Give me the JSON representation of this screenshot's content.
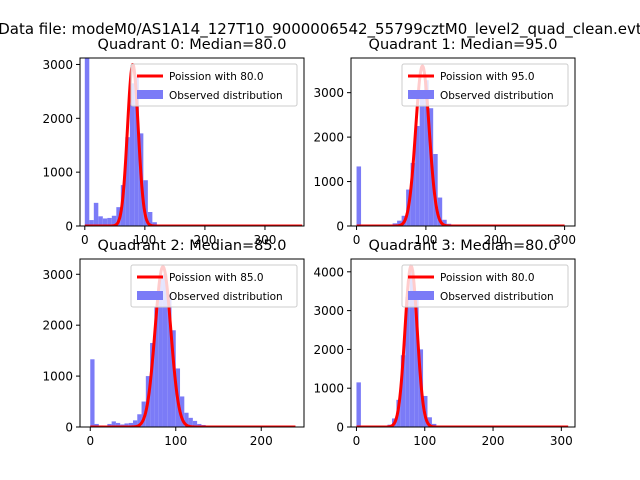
{
  "figure": {
    "suptitle": "Data file: modeM0/AS1A14_127T10_9000006542_55799cztM0_level2_quad_clean.evt"
  },
  "colors": {
    "histogram": "#7b7bf7",
    "poisson": "#ff0000",
    "axes": "#000000"
  },
  "chart_data": [
    {
      "type": "bar",
      "title": "Quadrant 0: Median=80.0",
      "xlim": [
        -8,
        365
      ],
      "ylim": [
        0,
        3120
      ],
      "xticks": [
        0,
        100,
        200,
        300
      ],
      "yticks": [
        0,
        1000,
        2000,
        3000
      ],
      "legend": {
        "location": "upper-right",
        "entries": [
          "Poission with 80.0",
          "Observed distribution"
        ]
      },
      "histogram": {
        "bin_width": 7.5,
        "bins": [
          {
            "x": 0,
            "count": 3120
          },
          {
            "x": 7.5,
            "count": 110
          },
          {
            "x": 15,
            "count": 430
          },
          {
            "x": 22.5,
            "count": 180
          },
          {
            "x": 30,
            "count": 140
          },
          {
            "x": 37.5,
            "count": 150
          },
          {
            "x": 45,
            "count": 190
          },
          {
            "x": 52.5,
            "count": 350
          },
          {
            "x": 60,
            "count": 760
          },
          {
            "x": 67.5,
            "count": 1650
          },
          {
            "x": 75,
            "count": 2650
          },
          {
            "x": 82.5,
            "count": 2780
          },
          {
            "x": 90,
            "count": 1720
          },
          {
            "x": 97.5,
            "count": 850
          },
          {
            "x": 105,
            "count": 260
          },
          {
            "x": 112.5,
            "count": 70
          },
          {
            "x": 120,
            "count": 20
          }
        ]
      },
      "poisson": {
        "mean": 80.0,
        "peak": 3000,
        "x_range": [
          0,
          362
        ]
      }
    },
    {
      "type": "bar",
      "title": "Quadrant 1: Median=95.0",
      "xlim": [
        -8,
        315
      ],
      "ylim": [
        0,
        3780
      ],
      "xticks": [
        0,
        100,
        200,
        300
      ],
      "yticks": [
        0,
        1000,
        2000,
        3000
      ],
      "legend": {
        "location": "upper-right",
        "entries": [
          "Poission with 95.0",
          "Observed distribution"
        ]
      },
      "histogram": {
        "bin_width": 6.5,
        "bins": [
          {
            "x": 0,
            "count": 1340
          },
          {
            "x": 6.5,
            "count": 30
          },
          {
            "x": 26,
            "count": 30
          },
          {
            "x": 52,
            "count": 60
          },
          {
            "x": 58.5,
            "count": 120
          },
          {
            "x": 65,
            "count": 230
          },
          {
            "x": 71.5,
            "count": 820
          },
          {
            "x": 78,
            "count": 1420
          },
          {
            "x": 84.5,
            "count": 2250
          },
          {
            "x": 91,
            "count": 3050
          },
          {
            "x": 97.5,
            "count": 3280
          },
          {
            "x": 104,
            "count": 2650
          },
          {
            "x": 110.5,
            "count": 1620
          },
          {
            "x": 117,
            "count": 640
          },
          {
            "x": 123.5,
            "count": 140
          },
          {
            "x": 130,
            "count": 50
          }
        ]
      },
      "poisson": {
        "mean": 95.0,
        "peak": 3600,
        "x_range": [
          0,
          300
        ]
      }
    },
    {
      "type": "bar",
      "title": "Quadrant 2: Median=85.0",
      "xlim": [
        -12,
        250
      ],
      "ylim": [
        0,
        3300
      ],
      "xticks": [
        0,
        100,
        200
      ],
      "yticks": [
        0,
        1000,
        2000,
        3000
      ],
      "legend": {
        "location": "upper-right",
        "entries": [
          "Poission with 85.0",
          "Observed distribution"
        ]
      },
      "histogram": {
        "bin_width": 5,
        "bins": [
          {
            "x": 0,
            "count": 1330
          },
          {
            "x": 5,
            "count": 60
          },
          {
            "x": 10,
            "count": 30
          },
          {
            "x": 20,
            "count": 60
          },
          {
            "x": 25,
            "count": 110
          },
          {
            "x": 30,
            "count": 80
          },
          {
            "x": 35,
            "count": 50
          },
          {
            "x": 40,
            "count": 70
          },
          {
            "x": 45,
            "count": 80
          },
          {
            "x": 50,
            "count": 130
          },
          {
            "x": 55,
            "count": 250
          },
          {
            "x": 60,
            "count": 500
          },
          {
            "x": 65,
            "count": 1000
          },
          {
            "x": 70,
            "count": 1650
          },
          {
            "x": 75,
            "count": 2350
          },
          {
            "x": 80,
            "count": 2950
          },
          {
            "x": 85,
            "count": 3000
          },
          {
            "x": 90,
            "count": 2600
          },
          {
            "x": 95,
            "count": 1900
          },
          {
            "x": 100,
            "count": 1150
          },
          {
            "x": 105,
            "count": 600
          },
          {
            "x": 110,
            "count": 280
          },
          {
            "x": 115,
            "count": 180
          },
          {
            "x": 120,
            "count": 120
          },
          {
            "x": 125,
            "count": 60
          },
          {
            "x": 130,
            "count": 40
          },
          {
            "x": 135,
            "count": 20
          }
        ]
      },
      "poisson": {
        "mean": 85.0,
        "peak": 3150,
        "x_range": [
          0,
          240
        ]
      }
    },
    {
      "type": "bar",
      "title": "Quadrant 3: Median=80.0",
      "xlim": [
        -8,
        320
      ],
      "ylim": [
        0,
        4330
      ],
      "xticks": [
        0,
        100,
        200,
        300
      ],
      "yticks": [
        0,
        1000,
        2000,
        3000,
        4000
      ],
      "legend": {
        "location": "upper-right",
        "entries": [
          "Poission with 80.0",
          "Observed distribution"
        ]
      },
      "histogram": {
        "bin_width": 6.5,
        "bins": [
          {
            "x": 0,
            "count": 1150
          },
          {
            "x": 6.5,
            "count": 30
          },
          {
            "x": 45.5,
            "count": 60
          },
          {
            "x": 52,
            "count": 220
          },
          {
            "x": 58.5,
            "count": 700
          },
          {
            "x": 65,
            "count": 1850
          },
          {
            "x": 71.5,
            "count": 3350
          },
          {
            "x": 78,
            "count": 4050
          },
          {
            "x": 84.5,
            "count": 3400
          },
          {
            "x": 91,
            "count": 2000
          },
          {
            "x": 97.5,
            "count": 800
          },
          {
            "x": 104,
            "count": 250
          },
          {
            "x": 110.5,
            "count": 80
          },
          {
            "x": 117,
            "count": 30
          }
        ]
      },
      "poisson": {
        "mean": 80.0,
        "peak": 4150,
        "x_range": [
          0,
          310
        ]
      }
    }
  ]
}
